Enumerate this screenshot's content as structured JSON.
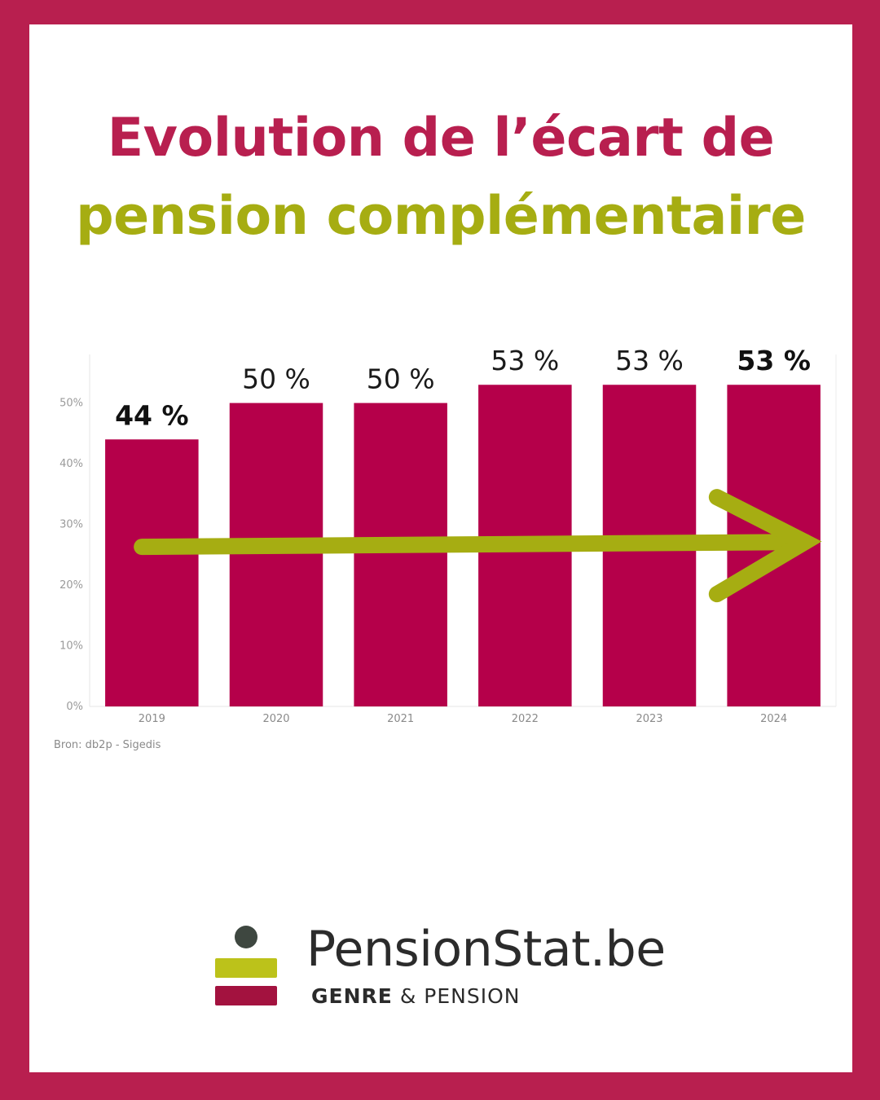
{
  "title": {
    "line1": "Evolution de l’écart de",
    "line2": "pension complémentaire",
    "line1_color": "#b81f4f",
    "line2_color": "#a6ad12"
  },
  "chart_data": {
    "type": "bar",
    "categories": [
      "2019",
      "2020",
      "2021",
      "2022",
      "2023",
      "2024"
    ],
    "values": [
      44,
      50,
      50,
      53,
      53,
      53
    ],
    "data_labels": [
      "44 %",
      "50 %",
      "50 %",
      "53 %",
      "53 %",
      "53 %"
    ],
    "bold_labels": [
      "2019",
      "2024"
    ],
    "y_ticks": [
      0,
      10,
      20,
      30,
      40,
      50
    ],
    "y_tick_labels": [
      "0%",
      "10%",
      "20%",
      "30%",
      "40%",
      "50%"
    ],
    "ylim": [
      0,
      58
    ],
    "bar_color": "#b5004a",
    "trend_arrow": {
      "direction": "increasing",
      "color": "#a6ad12"
    },
    "grid": false,
    "legend": "none",
    "source": "Bron: db2p - Sigedis"
  },
  "logo": {
    "name": "PensionStat.be",
    "tag_bold": "GENRE",
    "tag_rest": "& PENSION",
    "dot_color": "#3e4740",
    "bar1_color": "#bcc21a",
    "bar2_color": "#a3123f"
  }
}
